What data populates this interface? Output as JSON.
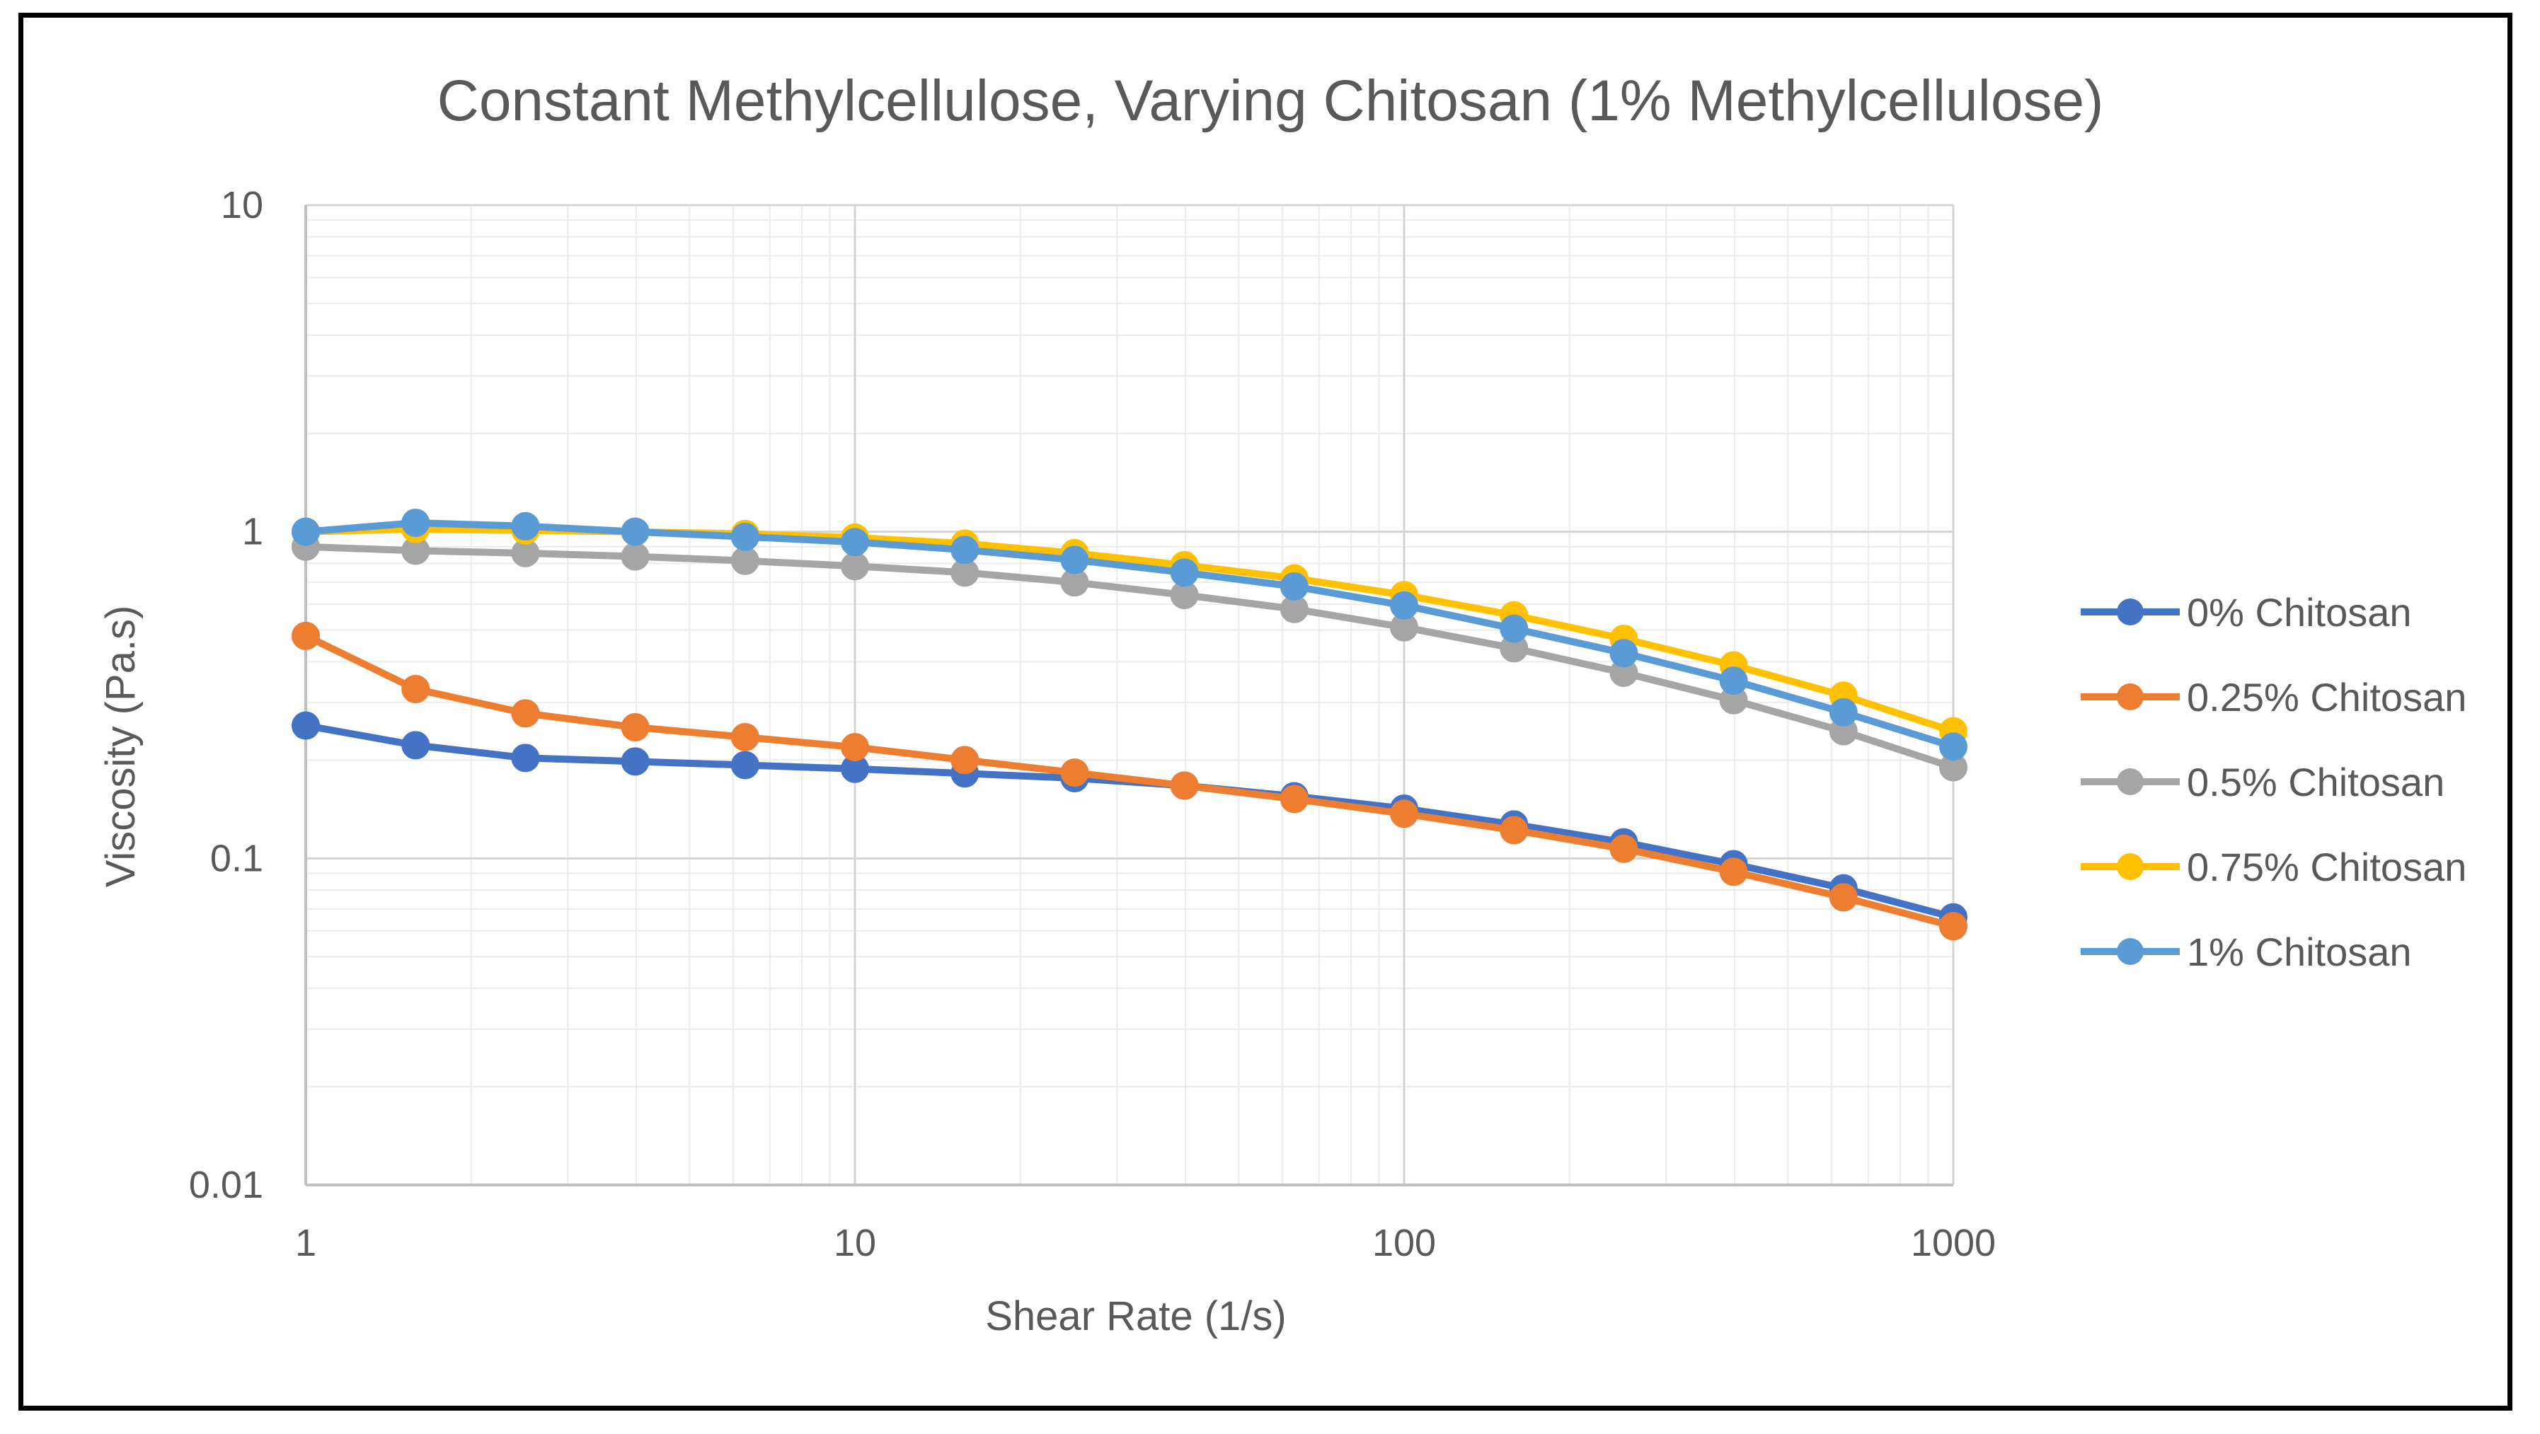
{
  "chart_data": {
    "type": "line",
    "title": "Constant Methylcellulose, Varying Chitosan (1% Methylcellulose)",
    "xlabel": "Shear Rate (1/s)",
    "ylabel": "Viscosity (Pa.s)",
    "xscale": "log",
    "yscale": "log",
    "xlim": [
      1,
      1000
    ],
    "ylim": [
      0.01,
      10
    ],
    "xticks": [
      1,
      10,
      100,
      1000
    ],
    "xtick_labels": [
      "1",
      "10",
      "100",
      "1000"
    ],
    "yticks": [
      0.01,
      0.1,
      1,
      10
    ],
    "ytick_labels": [
      "0.01",
      "0.1",
      "1",
      "10"
    ],
    "grid": true,
    "legend_position": "right",
    "x": [
      1,
      1.585,
      2.512,
      3.981,
      6.31,
      10,
      15.85,
      25.12,
      39.81,
      63.1,
      100,
      158.5,
      251.2,
      398.1,
      631,
      1000
    ],
    "series": [
      {
        "name": "0% Chitosan",
        "color": "#4472C4",
        "values": [
          0.255,
          0.222,
          0.203,
          0.198,
          0.193,
          0.188,
          0.182,
          0.176,
          0.167,
          0.155,
          0.142,
          0.127,
          0.112,
          0.096,
          0.081,
          0.066
        ]
      },
      {
        "name": "0.25% Chitosan",
        "color": "#ED7D31",
        "values": [
          0.48,
          0.33,
          0.278,
          0.252,
          0.235,
          0.219,
          0.2,
          0.183,
          0.167,
          0.152,
          0.137,
          0.122,
          0.107,
          0.091,
          0.076,
          0.062
        ]
      },
      {
        "name": "0.5% Chitosan",
        "color": "#A5A5A5",
        "values": [
          0.9,
          0.875,
          0.86,
          0.84,
          0.815,
          0.785,
          0.75,
          0.7,
          0.64,
          0.58,
          0.51,
          0.44,
          0.37,
          0.305,
          0.245,
          0.19
        ]
      },
      {
        "name": "0.75% Chitosan",
        "color": "#FFC000",
        "values": [
          1.0,
          1.02,
          1.01,
          1.0,
          0.985,
          0.96,
          0.92,
          0.86,
          0.79,
          0.72,
          0.64,
          0.555,
          0.47,
          0.39,
          0.315,
          0.245
        ]
      },
      {
        "name": "1% Chitosan",
        "color": "#5B9BD5",
        "values": [
          1.0,
          1.065,
          1.04,
          1.0,
          0.965,
          0.93,
          0.88,
          0.82,
          0.75,
          0.68,
          0.595,
          0.505,
          0.425,
          0.35,
          0.28,
          0.22
        ]
      }
    ]
  }
}
